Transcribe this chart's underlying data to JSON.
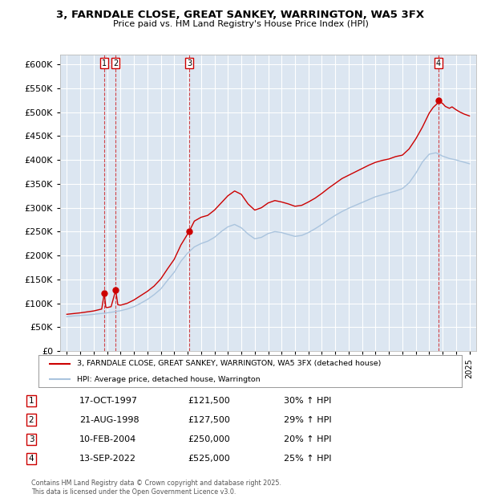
{
  "title": "3, FARNDALE CLOSE, GREAT SANKEY, WARRINGTON, WA5 3FX",
  "subtitle": "Price paid vs. HM Land Registry's House Price Index (HPI)",
  "legend_label_red": "3, FARNDALE CLOSE, GREAT SANKEY, WARRINGTON, WA5 3FX (detached house)",
  "legend_label_blue": "HPI: Average price, detached house, Warrington",
  "footer": "Contains HM Land Registry data © Crown copyright and database right 2025.\nThis data is licensed under the Open Government Licence v3.0.",
  "transactions": [
    {
      "num": 1,
      "date": "17-OCT-1997",
      "price": 121500,
      "hpi_diff": "30% ↑ HPI",
      "year": 1997.79
    },
    {
      "num": 2,
      "date": "21-AUG-1998",
      "price": 127500,
      "hpi_diff": "29% ↑ HPI",
      "year": 1998.64
    },
    {
      "num": 3,
      "date": "10-FEB-2004",
      "price": 250000,
      "hpi_diff": "20% ↑ HPI",
      "year": 2004.11
    },
    {
      "num": 4,
      "date": "13-SEP-2022",
      "price": 525000,
      "hpi_diff": "25% ↑ HPI",
      "year": 2022.7
    }
  ],
  "ylim": [
    0,
    620000
  ],
  "yticks": [
    0,
    50000,
    100000,
    150000,
    200000,
    250000,
    300000,
    350000,
    400000,
    450000,
    500000,
    550000,
    600000
  ],
  "xlim_start": 1994.5,
  "xlim_end": 2025.5,
  "bg_color": "#dce6f1",
  "grid_color": "#ffffff",
  "red_color": "#cc0000",
  "blue_color": "#aac4de",
  "hpi_blue_line": [
    [
      1995.0,
      72000
    ],
    [
      1995.5,
      73500
    ],
    [
      1996.0,
      74500
    ],
    [
      1996.5,
      75500
    ],
    [
      1997.0,
      77000
    ],
    [
      1997.5,
      78500
    ],
    [
      1998.0,
      80000
    ],
    [
      1998.5,
      82000
    ],
    [
      1999.0,
      84500
    ],
    [
      1999.5,
      88000
    ],
    [
      2000.0,
      93000
    ],
    [
      2000.5,
      100000
    ],
    [
      2001.0,
      108000
    ],
    [
      2001.5,
      118000
    ],
    [
      2002.0,
      130000
    ],
    [
      2002.5,
      148000
    ],
    [
      2003.0,
      165000
    ],
    [
      2003.5,
      188000
    ],
    [
      2004.0,
      205000
    ],
    [
      2004.5,
      218000
    ],
    [
      2005.0,
      225000
    ],
    [
      2005.5,
      230000
    ],
    [
      2006.0,
      238000
    ],
    [
      2006.5,
      250000
    ],
    [
      2007.0,
      260000
    ],
    [
      2007.5,
      265000
    ],
    [
      2008.0,
      258000
    ],
    [
      2008.5,
      245000
    ],
    [
      2009.0,
      235000
    ],
    [
      2009.5,
      238000
    ],
    [
      2010.0,
      246000
    ],
    [
      2010.5,
      250000
    ],
    [
      2011.0,
      248000
    ],
    [
      2011.5,
      244000
    ],
    [
      2012.0,
      240000
    ],
    [
      2012.5,
      242000
    ],
    [
      2013.0,
      248000
    ],
    [
      2013.5,
      256000
    ],
    [
      2014.0,
      265000
    ],
    [
      2014.5,
      275000
    ],
    [
      2015.0,
      284000
    ],
    [
      2015.5,
      292000
    ],
    [
      2016.0,
      299000
    ],
    [
      2016.5,
      305000
    ],
    [
      2017.0,
      311000
    ],
    [
      2017.5,
      317000
    ],
    [
      2018.0,
      323000
    ],
    [
      2018.5,
      327000
    ],
    [
      2019.0,
      331000
    ],
    [
      2019.5,
      335000
    ],
    [
      2020.0,
      340000
    ],
    [
      2020.5,
      352000
    ],
    [
      2021.0,
      372000
    ],
    [
      2021.5,
      396000
    ],
    [
      2022.0,
      412000
    ],
    [
      2022.5,
      415000
    ],
    [
      2023.0,
      408000
    ],
    [
      2023.5,
      403000
    ],
    [
      2024.0,
      400000
    ],
    [
      2024.5,
      396000
    ],
    [
      2025.0,
      392000
    ]
  ],
  "hpi_red_line": [
    [
      1995.0,
      77000
    ],
    [
      1995.5,
      78500
    ],
    [
      1996.0,
      80000
    ],
    [
      1996.5,
      82000
    ],
    [
      1997.0,
      84000
    ],
    [
      1997.3,
      86000
    ],
    [
      1997.6,
      88000
    ],
    [
      1997.79,
      121500
    ],
    [
      1997.9,
      92000
    ],
    [
      1998.0,
      91000
    ],
    [
      1998.3,
      93000
    ],
    [
      1998.64,
      127500
    ],
    [
      1998.8,
      97000
    ],
    [
      1999.0,
      96000
    ],
    [
      1999.5,
      100000
    ],
    [
      2000.0,
      107000
    ],
    [
      2000.5,
      116000
    ],
    [
      2001.0,
      125000
    ],
    [
      2001.5,
      136000
    ],
    [
      2002.0,
      151000
    ],
    [
      2002.5,
      172000
    ],
    [
      2003.0,
      192000
    ],
    [
      2003.5,
      222000
    ],
    [
      2004.0,
      245000
    ],
    [
      2004.11,
      250000
    ],
    [
      2004.5,
      272000
    ],
    [
      2005.0,
      280000
    ],
    [
      2005.5,
      284000
    ],
    [
      2006.0,
      295000
    ],
    [
      2006.5,
      310000
    ],
    [
      2007.0,
      325000
    ],
    [
      2007.5,
      335000
    ],
    [
      2008.0,
      328000
    ],
    [
      2008.5,
      308000
    ],
    [
      2009.0,
      295000
    ],
    [
      2009.5,
      300000
    ],
    [
      2010.0,
      310000
    ],
    [
      2010.5,
      315000
    ],
    [
      2011.0,
      312000
    ],
    [
      2011.5,
      308000
    ],
    [
      2012.0,
      303000
    ],
    [
      2012.5,
      305000
    ],
    [
      2013.0,
      312000
    ],
    [
      2013.5,
      320000
    ],
    [
      2014.0,
      330000
    ],
    [
      2014.5,
      341000
    ],
    [
      2015.0,
      351000
    ],
    [
      2015.5,
      361000
    ],
    [
      2016.0,
      368000
    ],
    [
      2016.5,
      375000
    ],
    [
      2017.0,
      382000
    ],
    [
      2017.5,
      389000
    ],
    [
      2018.0,
      395000
    ],
    [
      2018.5,
      399000
    ],
    [
      2019.0,
      402000
    ],
    [
      2019.5,
      407000
    ],
    [
      2020.0,
      410000
    ],
    [
      2020.5,
      423000
    ],
    [
      2021.0,
      444000
    ],
    [
      2021.5,
      469000
    ],
    [
      2022.0,
      498000
    ],
    [
      2022.3,
      510000
    ],
    [
      2022.6,
      518000
    ],
    [
      2022.7,
      525000
    ],
    [
      2022.8,
      522000
    ],
    [
      2023.0,
      518000
    ],
    [
      2023.2,
      512000
    ],
    [
      2023.5,
      508000
    ],
    [
      2023.7,
      511000
    ],
    [
      2024.0,
      505000
    ],
    [
      2024.3,
      500000
    ],
    [
      2024.6,
      496000
    ],
    [
      2025.0,
      492000
    ]
  ]
}
